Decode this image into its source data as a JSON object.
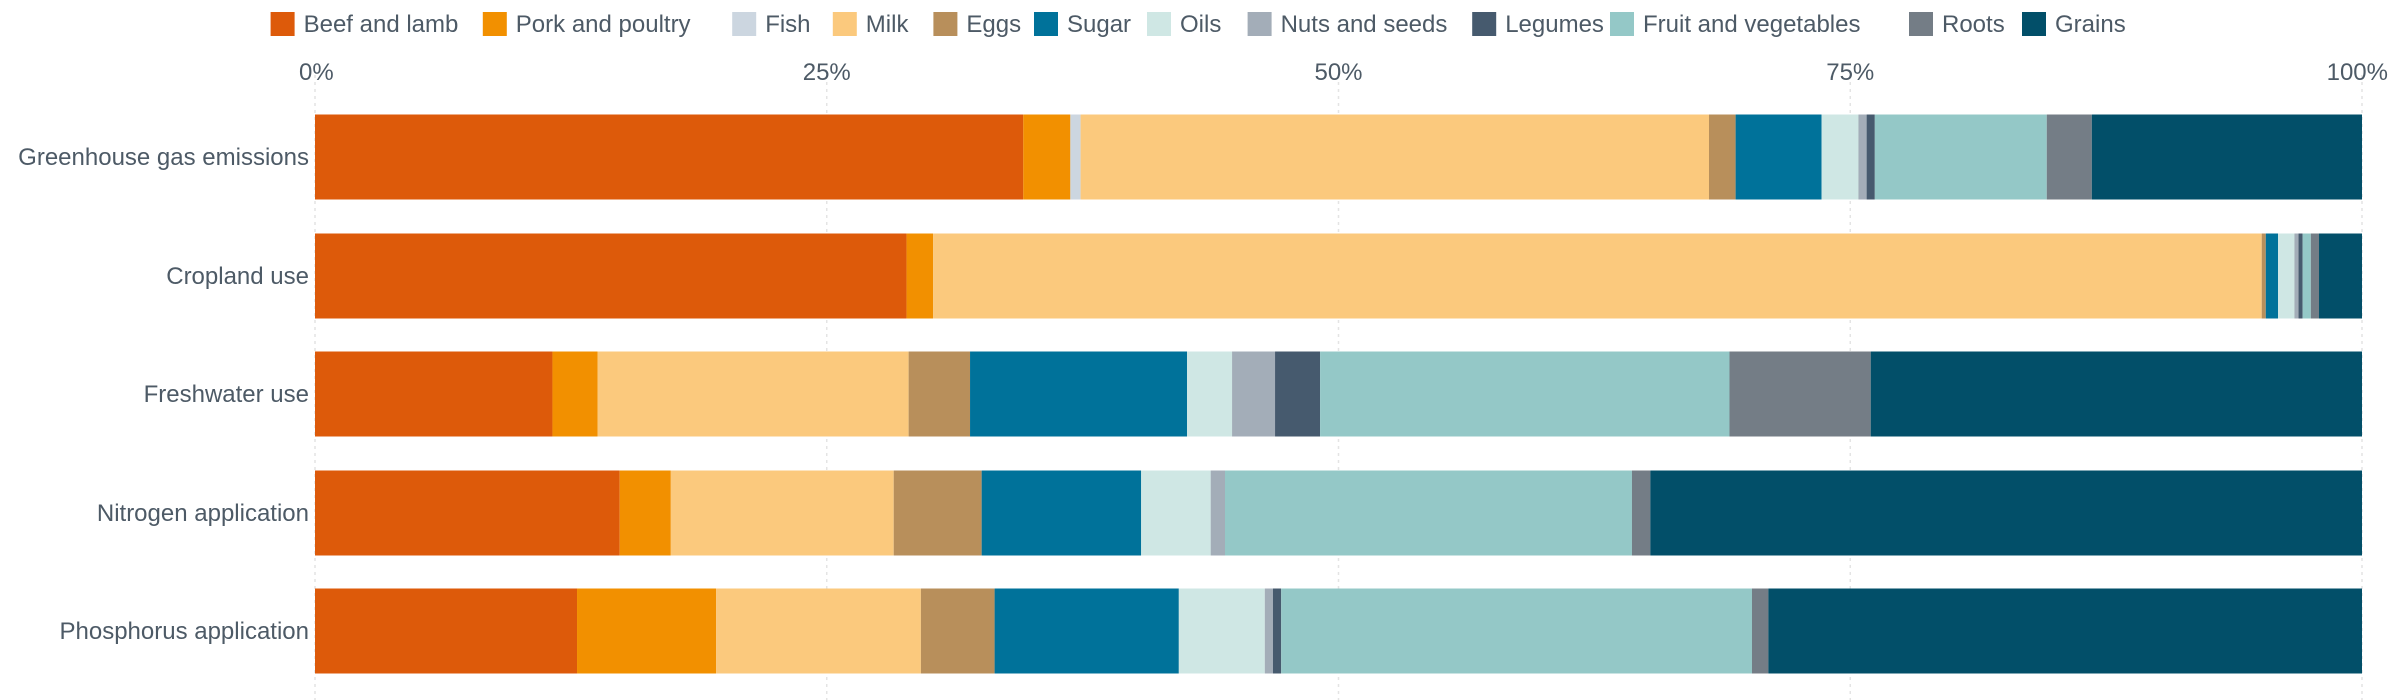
{
  "chart_data": {
    "type": "bar",
    "orientation": "horizontal",
    "stacked": true,
    "normalized": true,
    "categories": [
      "Greenhouse gas emissions",
      "Cropland use",
      "Freshwater use",
      "Nitrogen application",
      "Phosphorus application"
    ],
    "series": [
      {
        "name": "Beef and lamb",
        "color": "#dd5a0a",
        "values": [
          34.6,
          28.9,
          11.6,
          14.9,
          12.8
        ]
      },
      {
        "name": "Pork and poultry",
        "color": "#f29000",
        "values": [
          2.3,
          1.3,
          2.2,
          2.5,
          6.8
        ]
      },
      {
        "name": "Fish",
        "color": "#ccd6e0",
        "values": [
          0.5,
          0,
          0,
          0,
          0
        ]
      },
      {
        "name": "Milk",
        "color": "#fbc97d",
        "values": [
          30.7,
          64.9,
          15.2,
          10.9,
          10.0
        ]
      },
      {
        "name": "Eggs",
        "color": "#b88f5b",
        "values": [
          1.3,
          0.2,
          3.0,
          4.3,
          3.6
        ]
      },
      {
        "name": "Sugar",
        "color": "#00729a",
        "values": [
          4.2,
          0.6,
          10.6,
          7.8,
          9.0
        ]
      },
      {
        "name": "Oils",
        "color": "#cfe7e4",
        "values": [
          1.8,
          0.8,
          2.2,
          3.4,
          4.2
        ]
      },
      {
        "name": "Nuts and seeds",
        "color": "#a3adb8",
        "values": [
          0.4,
          0.2,
          2.1,
          0.7,
          0.4
        ]
      },
      {
        "name": "Legumes",
        "color": "#465a6e",
        "values": [
          0.4,
          0.2,
          2.2,
          0,
          0.4
        ]
      },
      {
        "name": "Fruit and vegetables",
        "color": "#94c8c7",
        "values": [
          8.4,
          0.4,
          20.0,
          19.9,
          23.0
        ]
      },
      {
        "name": "Roots",
        "color": "#747d86",
        "values": [
          2.2,
          0.4,
          6.9,
          0.9,
          0.8
        ]
      },
      {
        "name": "Grains",
        "color": "#024f69",
        "values": [
          13.2,
          2.1,
          24.0,
          34.8,
          29.0
        ]
      }
    ],
    "x_ticks": [
      "0%",
      "25%",
      "50%",
      "75%",
      "100%"
    ],
    "xlim": [
      0,
      100
    ],
    "grid": true,
    "legend_position": "top"
  }
}
